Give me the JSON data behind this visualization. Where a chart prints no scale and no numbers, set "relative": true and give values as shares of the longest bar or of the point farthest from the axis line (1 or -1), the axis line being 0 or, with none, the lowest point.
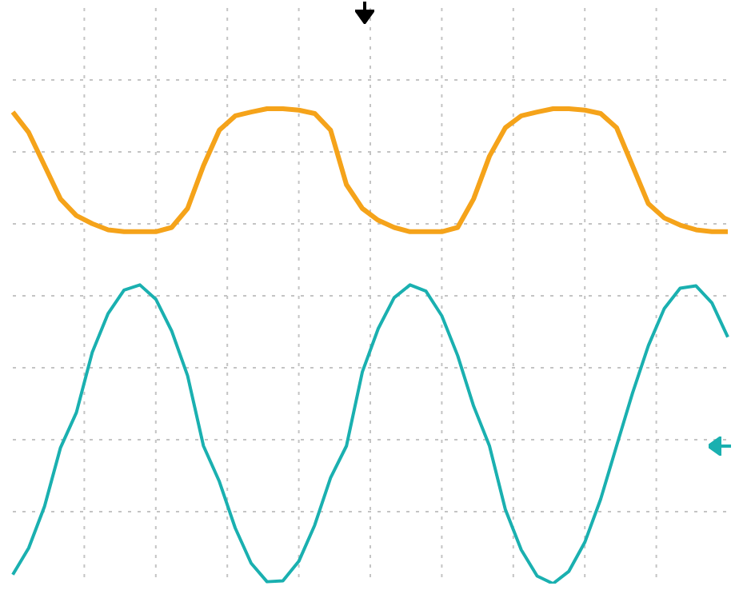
{
  "chart_data": {
    "type": "line",
    "relative": true,
    "grid": true,
    "legend": false,
    "marker": "none",
    "line_style": "solid",
    "categories": [
      null,
      null,
      null,
      null,
      null,
      null,
      null,
      null,
      null,
      null,
      null,
      null,
      null,
      null,
      null,
      null,
      null,
      null,
      null,
      null,
      null,
      null,
      null,
      null,
      null,
      null,
      null,
      null,
      null,
      null,
      null,
      null,
      null,
      null,
      null,
      null,
      null,
      null,
      null,
      null,
      null,
      null,
      null,
      null,
      null,
      null
    ],
    "series": [
      {
        "color": "#f5a31a",
        "values": [
          0.993,
          0.95,
          0.88,
          0.81,
          0.775,
          0.758,
          0.745,
          0.741,
          0.741,
          0.741,
          0.75,
          0.79,
          0.88,
          0.955,
          0.985,
          0.993,
          1,
          1,
          0.997,
          0.99,
          0.955,
          0.84,
          0.79,
          0.765,
          0.75,
          0.741,
          0.741,
          0.741,
          0.75,
          0.81,
          0.9,
          0.96,
          0.985,
          0.993,
          1,
          1,
          0.997,
          0.99,
          0.96,
          0.88,
          0.8,
          0.77,
          0.755,
          0.745,
          0.741,
          0.741
        ]
      },
      {
        "color": "#1ab0b0",
        "values": [
          0.019,
          0.075,
          0.163,
          0.286,
          0.36,
          0.487,
          0.569,
          0.618,
          0.629,
          0.599,
          0.532,
          0.438,
          0.29,
          0.215,
          0.117,
          0.043,
          0.004,
          0.006,
          0.047,
          0.123,
          0.223,
          0.29,
          0.446,
          0.537,
          0.602,
          0.629,
          0.616,
          0.564,
          0.48,
          0.374,
          0.29,
          0.156,
          0.071,
          0.016,
          0,
          0.026,
          0.087,
          0.178,
          0.29,
          0.401,
          0.501,
          0.579,
          0.622,
          0.627,
          0.591,
          0.519
        ]
      }
    ]
  }
}
